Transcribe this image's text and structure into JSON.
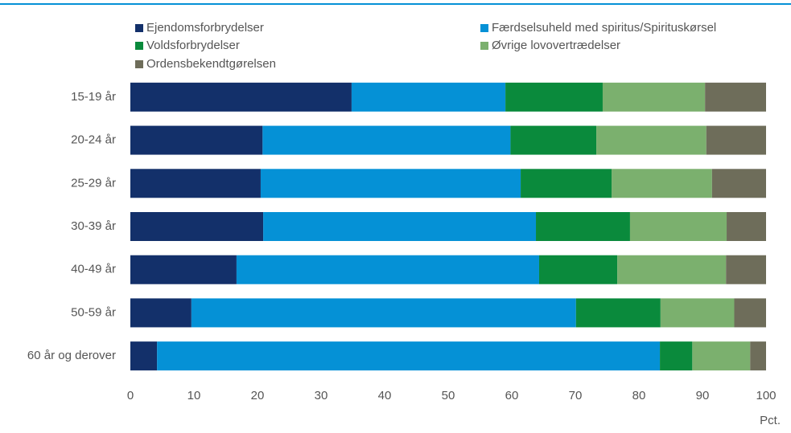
{
  "chart_data": {
    "type": "stacked_barh",
    "categories": [
      "15-19 år",
      "20-24 år",
      "25-29 år",
      "30-39 år",
      "40-49 år",
      "50-59 år",
      "60 år og derover"
    ],
    "series": [
      {
        "name": "Ejendomsforbrydelser",
        "color": "#13306a",
        "values": [
          34.8,
          20.8,
          20.5,
          20.9,
          16.7,
          9.6,
          4.2
        ]
      },
      {
        "name": "Færdselsuheld med spiritus/Spirituskørsel",
        "color": "#0591d6",
        "values": [
          24.2,
          39.0,
          40.9,
          42.9,
          47.6,
          60.5,
          79.1
        ]
      },
      {
        "name": "Voldsforbrydelser",
        "color": "#0a8a3c",
        "values": [
          15.3,
          13.5,
          14.3,
          14.8,
          12.3,
          13.3,
          5.1
        ]
      },
      {
        "name": "Øvrige lovovertrædelser",
        "color": "#7bb06e",
        "values": [
          16.1,
          17.3,
          15.8,
          15.2,
          17.1,
          11.6,
          9.1
        ]
      },
      {
        "name": "Ordensbekendtgørelsen",
        "color": "#6e6d5a",
        "values": [
          9.6,
          9.4,
          8.5,
          6.2,
          6.3,
          5.0,
          2.5
        ]
      }
    ],
    "xlim": [
      0,
      100
    ],
    "xticks": [
      0,
      10,
      20,
      30,
      40,
      50,
      60,
      70,
      80,
      90,
      100
    ],
    "x_unit": "Pct."
  }
}
